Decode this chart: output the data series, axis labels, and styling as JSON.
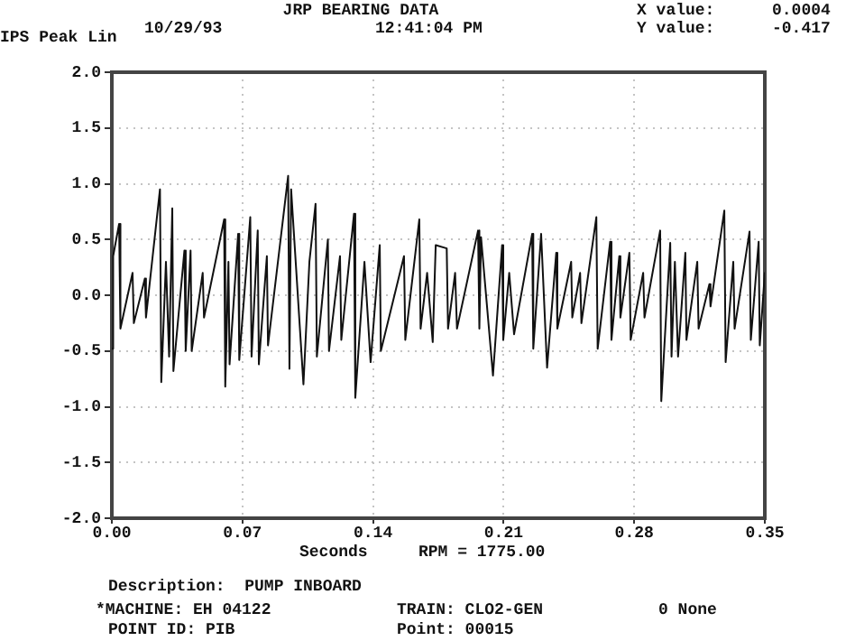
{
  "chart_data": {
    "type": "line",
    "title": "JRP BEARING DATA",
    "ylabel": "IPS Peak Lin",
    "xlabel": "Seconds",
    "annotations": [
      "10/29/93",
      "12:41:04 PM",
      "X value:",
      "0.0004",
      "Y value:",
      "-0.417",
      "RPM = 1775.00",
      "Description:  PUMP INBOARD",
      "*MACHINE: EH 04122",
      "TRAIN: CLO2-GEN",
      "0 None",
      "POINT ID: PIB",
      "Point: 00015"
    ],
    "series": [
      {
        "color": "#111111",
        "x": [
          0,
          0.0007,
          0.0039,
          0.0046,
          0.0111,
          0.0118,
          0.0177,
          0.0183,
          0.0258,
          0.0265,
          0.029,
          0.0307,
          0.0324,
          0.033,
          0.0389,
          0.0396,
          0.0422,
          0.0428,
          0.0487,
          0.0494,
          0.0602,
          0.0608,
          0.0625,
          0.0631,
          0.0677,
          0.0683,
          0.0742,
          0.0749,
          0.0782,
          0.0788,
          0.0831,
          0.0837,
          0.0945,
          0.0952,
          0.0961,
          0.1027,
          0.1059,
          0.1092,
          0.1099,
          0.1158,
          0.1164,
          0.1223,
          0.123,
          0.1298,
          0.1305,
          0.1354,
          0.1387,
          0.1436,
          0.1442,
          0.1566,
          0.1573,
          0.1648,
          0.1655,
          0.169,
          0.172,
          0.1736,
          0.1795,
          0.1802,
          0.184,
          0.185,
          0.1963,
          0.197,
          0.1979,
          0.2043,
          0.2092,
          0.2098,
          0.213,
          0.2156,
          0.2253,
          0.2259,
          0.2301,
          0.2333,
          0.2382,
          0.2388,
          0.2462,
          0.2468,
          0.251,
          0.2517,
          0.2597,
          0.2604,
          0.2671,
          0.2678,
          0.272,
          0.2726,
          0.2774,
          0.2781,
          0.2848,
          0.2855,
          0.2939,
          0.2945,
          0.2993,
          0.3,
          0.3018,
          0.3035,
          0.3074,
          0.308,
          0.3138,
          0.3145,
          0.3203,
          0.3209,
          0.3283,
          0.329,
          0.3331,
          0.3338,
          0.3418,
          0.3425,
          0.3467,
          0.3473,
          0.35
        ],
        "values": [
          -0.48,
          0.35,
          0.64,
          -0.3,
          0.2,
          -0.25,
          0.15,
          -0.2,
          0.95,
          -0.78,
          0.3,
          -0.55,
          0.78,
          -0.68,
          0.4,
          -0.5,
          0.4,
          -0.5,
          0.2,
          -0.2,
          0.68,
          -0.82,
          0.3,
          -0.62,
          0.55,
          -0.58,
          0.7,
          -0.55,
          0.58,
          -0.62,
          0.35,
          -0.45,
          1.07,
          -0.66,
          0.95,
          -0.8,
          0.3,
          0.82,
          -0.55,
          0.5,
          -0.5,
          0.35,
          -0.4,
          0.73,
          -0.92,
          0.3,
          -0.6,
          0.45,
          -0.5,
          0.35,
          -0.4,
          0.68,
          -0.3,
          0.2,
          -0.42,
          0.45,
          0.42,
          -0.3,
          0.2,
          -0.3,
          0.58,
          -0.3,
          0.52,
          -0.72,
          0.45,
          -0.4,
          0.2,
          -0.35,
          0.55,
          -0.48,
          0.55,
          -0.65,
          0.38,
          -0.3,
          0.3,
          -0.2,
          0.2,
          -0.25,
          0.7,
          -0.48,
          0.48,
          -0.4,
          0.35,
          -0.2,
          0.38,
          -0.4,
          0.2,
          -0.2,
          0.58,
          -0.95,
          0.47,
          -0.55,
          0.3,
          -0.55,
          0.38,
          -0.4,
          0.3,
          -0.3,
          0.1,
          -0.1,
          0.76,
          -0.6,
          0.3,
          -0.3,
          0.57,
          -0.4,
          0.48,
          -0.45,
          0.2
        ]
      }
    ],
    "xlim": [
      0,
      0.35
    ],
    "xticks": [
      {
        "value": 0,
        "label": "0.00"
      },
      {
        "value": 0.07,
        "label": "0.07"
      },
      {
        "value": 0.14,
        "label": "0.14"
      },
      {
        "value": 0.21,
        "label": "0.21"
      },
      {
        "value": 0.28,
        "label": "0.28"
      },
      {
        "value": 0.35,
        "label": "0.35"
      }
    ],
    "ylim": [
      -2,
      2
    ],
    "yticks": [
      {
        "value": -2,
        "label": "-2.0"
      },
      {
        "value": -1.5,
        "label": "-1.5"
      },
      {
        "value": -1,
        "label": "-1.0"
      },
      {
        "value": -0.5,
        "label": "-0.5"
      },
      {
        "value": 0,
        "label": "0.0"
      },
      {
        "value": 0.5,
        "label": "0.5"
      },
      {
        "value": 1,
        "label": "1.0"
      },
      {
        "value": 1.5,
        "label": "1.5"
      },
      {
        "value": 2,
        "label": "2.0"
      }
    ],
    "grid": true,
    "marker": "none",
    "line_style": "solid"
  }
}
